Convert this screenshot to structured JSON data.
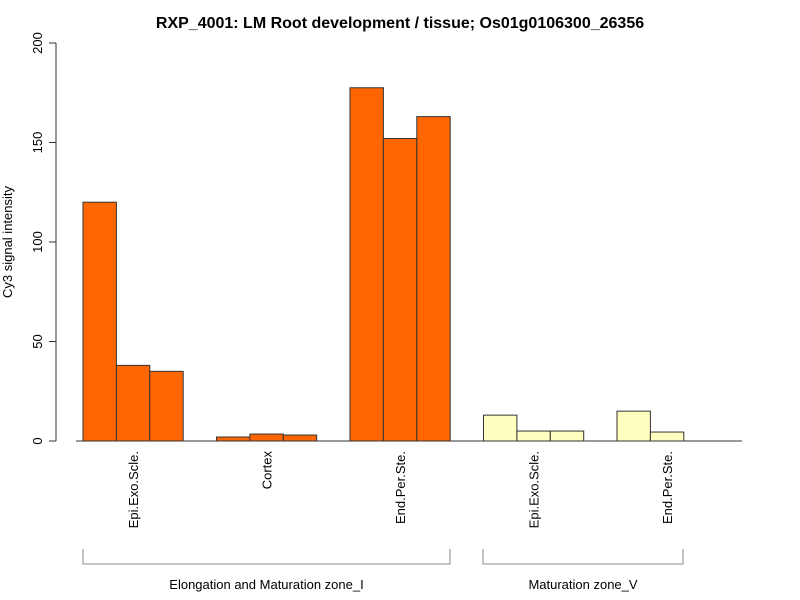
{
  "chart_data": {
    "type": "bar",
    "title": "RXP_4001: LM Root development / tissue; Os01g0106300_26356",
    "xlabel": "",
    "ylabel": "Cy3 signal intensity",
    "ylim": [
      0,
      200
    ],
    "yticks": [
      "0",
      "50",
      "100",
      "150",
      "200"
    ],
    "grid": false,
    "legend": "none",
    "categories": [
      {
        "label": "Epi.Exo.Scle.",
        "group": 0,
        "color": "#FF6600",
        "values": [
          120,
          38,
          35
        ]
      },
      {
        "label": "Cortex",
        "group": 0,
        "color": "#FF6600",
        "values": [
          2,
          3.5,
          3
        ]
      },
      {
        "label": "End.Per.Ste.",
        "group": 0,
        "color": "#FF6600",
        "values": [
          177.5,
          152,
          163
        ]
      },
      {
        "label": "Epi.Exo.Scle.",
        "group": 1,
        "color": "#FFFFC0",
        "values": [
          13,
          5,
          5
        ]
      },
      {
        "label": "End.Per.Ste.",
        "group": 1,
        "color": "#FFFFC0",
        "values": [
          15,
          4.5
        ]
      }
    ],
    "groups": [
      {
        "label": "Elongation and Maturation zone_I"
      },
      {
        "label": "Maturation zone_V"
      }
    ]
  }
}
